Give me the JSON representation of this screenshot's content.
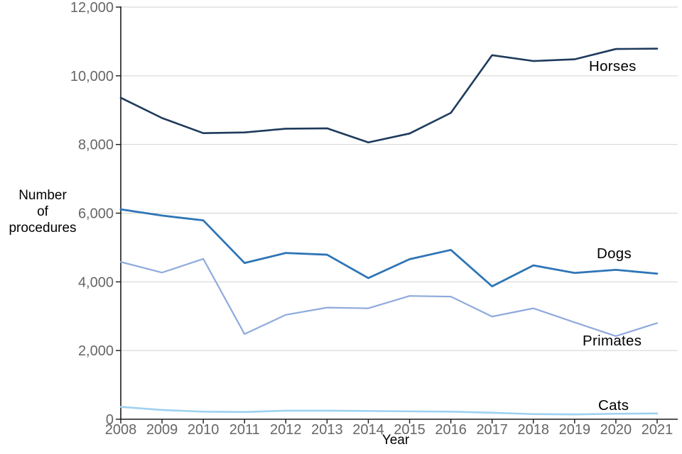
{
  "page": {
    "background_color": "#ffffff"
  },
  "chart": {
    "ylabel_lines": [
      "Number",
      "of",
      "procedures"
    ]
  },
  "chart_data": {
    "type": "line",
    "title": "",
    "xlabel": "Year",
    "ylabel": "Number of procedures",
    "x": [
      2008,
      2009,
      2010,
      2011,
      2012,
      2013,
      2014,
      2015,
      2016,
      2017,
      2018,
      2019,
      2020,
      2021
    ],
    "xtick_labels": [
      "2008",
      "2009",
      "2010",
      "2011",
      "2012",
      "2013",
      "2014",
      "2015",
      "2016",
      "2017",
      "2018",
      "2019",
      "2020",
      "2021"
    ],
    "ylim": [
      0,
      12000
    ],
    "yticks": [
      0,
      2000,
      4000,
      6000,
      8000,
      10000,
      12000
    ],
    "ytick_labels": [
      "0",
      "2,000",
      "4,000",
      "6,000",
      "8,000",
      "10,000",
      "12,000"
    ],
    "grid": true,
    "legend_position": "end-of-line-labels",
    "series": [
      {
        "name": "Horses",
        "color": "#1e3a5c",
        "values": [
          9360,
          8770,
          8330,
          8350,
          8460,
          8470,
          8060,
          8320,
          8920,
          10600,
          10430,
          10480,
          10780,
          10790
        ]
      },
      {
        "name": "Dogs",
        "color": "#2e75b6",
        "values": [
          6110,
          5930,
          5790,
          4550,
          4840,
          4790,
          4110,
          4660,
          4930,
          3870,
          4480,
          4260,
          4350,
          4240
        ]
      },
      {
        "name": "Primates",
        "color": "#8faadc",
        "values": [
          4580,
          4270,
          4670,
          2480,
          3040,
          3250,
          3230,
          3590,
          3570,
          2990,
          3230,
          2820,
          2420,
          2800
        ]
      },
      {
        "name": "Cats",
        "color": "#9ed1f0",
        "values": [
          360,
          270,
          220,
          210,
          250,
          250,
          240,
          230,
          220,
          190,
          150,
          140,
          160,
          170
        ]
      }
    ],
    "style": {
      "axis_color": "#1a1a1a",
      "grid_color": "#d2d2d2",
      "tick_label_color": "#666666",
      "axis_title_color": "#000000",
      "series_label_color": "#000000"
    }
  }
}
